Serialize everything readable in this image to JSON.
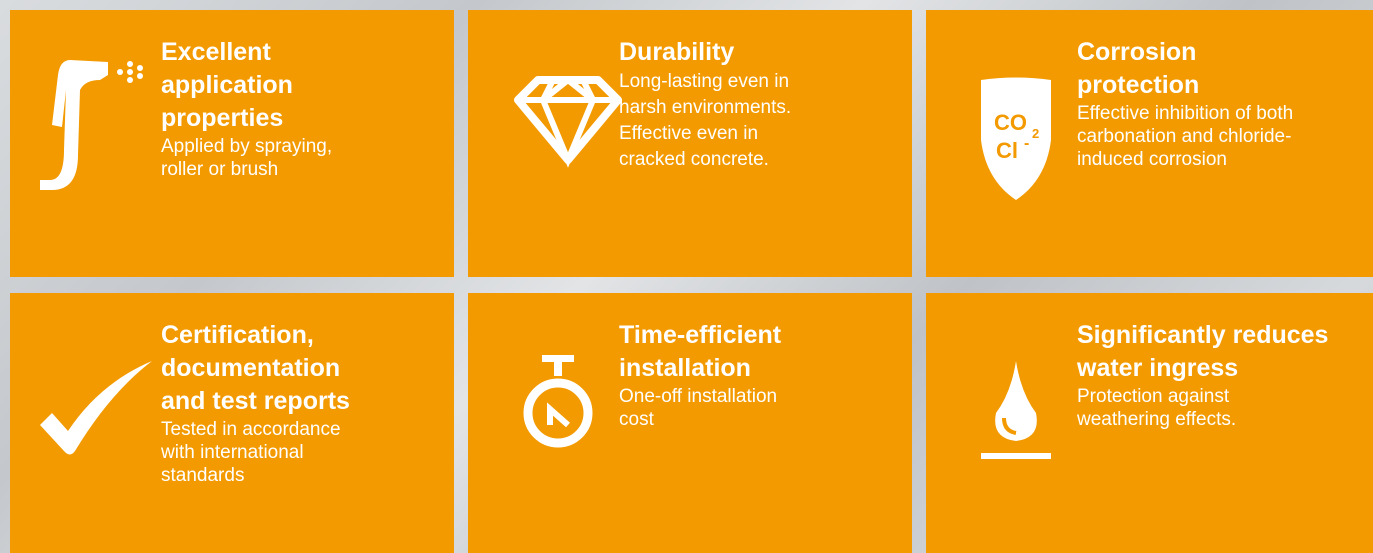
{
  "cards": [
    {
      "title_lines": [
        "Excellent",
        "application",
        "properties"
      ],
      "body_lines": [
        "Applied by spraying,",
        "roller or brush"
      ]
    },
    {
      "title_lines": [
        "Durability"
      ],
      "body_lines": [
        "Long-lasting even in",
        "harsh environments.",
        "Effective even in",
        "cracked concrete."
      ]
    },
    {
      "title_lines": [
        "Corrosion",
        "protection"
      ],
      "body_lines": [
        "Effective inhibition of both",
        "carbonation and chloride-",
        "induced corrosion"
      ],
      "icon_text": [
        "CO",
        "2",
        "Cl",
        "-"
      ]
    },
    {
      "title_lines": [
        "Certification,",
        "documentation",
        "and test reports"
      ],
      "body_lines": [
        "Tested in accordance",
        "with international",
        "standards"
      ]
    },
    {
      "title_lines": [
        "Time-efficient",
        "installation"
      ],
      "body_lines": [
        "One-off installation",
        "cost"
      ]
    },
    {
      "title_lines": [
        "Significantly reduces",
        "water ingress"
      ],
      "body_lines": [
        "Protection against",
        "weathering effects."
      ]
    }
  ]
}
